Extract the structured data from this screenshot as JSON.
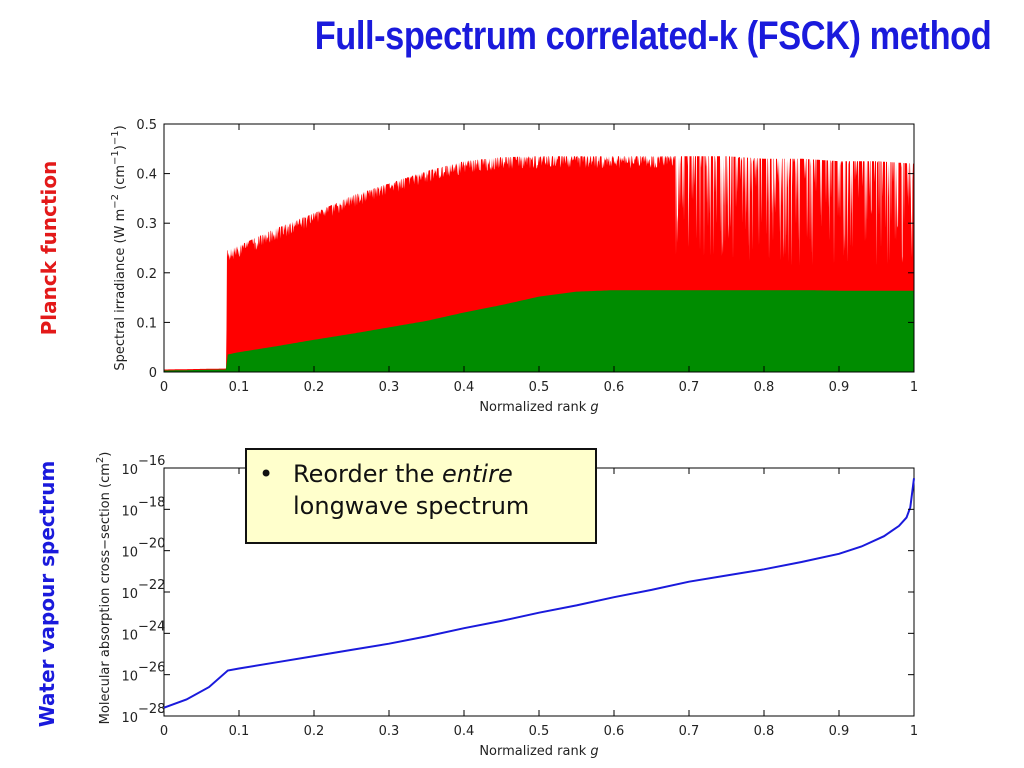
{
  "slide": {
    "title": "Full-spectrum correlated-k (FSCK) method",
    "left_label_top": "Planck function",
    "left_label_bottom": "Water vapour spectrum",
    "callout": {
      "bullet": "•",
      "text_before": "Reorder the ",
      "text_emph": "entire",
      "text_after": "longwave spectrum"
    }
  },
  "chart_data": [
    {
      "type": "area",
      "title": "",
      "xlabel": "Normalized rank",
      "xlabel_var": "g",
      "ylabel": "Spectral irradiance (W m",
      "ylabel_sup1": "−2",
      "ylabel_mid": " (cm",
      "ylabel_sup2": "−1",
      "ylabel_end": ")",
      "ylabel_sup3": "−1",
      "ylabel_close": ")",
      "xlim": [
        0,
        1
      ],
      "ylim": [
        0,
        0.5
      ],
      "xticks": [
        0,
        0.1,
        0.2,
        0.3,
        0.4,
        0.5,
        0.6,
        0.7,
        0.8,
        0.9,
        1
      ],
      "xtick_labels": [
        "0",
        "0.1",
        "0.2",
        "0.3",
        "0.4",
        "0.5",
        "0.6",
        "0.7",
        "0.8",
        "0.9",
        "1"
      ],
      "yticks": [
        0,
        0.1,
        0.2,
        0.3,
        0.4,
        0.5
      ],
      "ytick_labels": [
        "0",
        "0.1",
        "0.2",
        "0.3",
        "0.4",
        "0.5"
      ],
      "series": [
        {
          "color": "#ff0000",
          "x": [
            0,
            0.083,
            0.084,
            0.1,
            0.15,
            0.2,
            0.25,
            0.3,
            0.35,
            0.4,
            0.45,
            0.5,
            0.55,
            0.6,
            0.65,
            0.7,
            0.75,
            0.8,
            0.85,
            0.9,
            0.95,
            1.0
          ],
          "y": [
            0.005,
            0.007,
            0.245,
            0.255,
            0.29,
            0.32,
            0.355,
            0.38,
            0.405,
            0.425,
            0.433,
            0.435,
            0.435,
            0.435,
            0.435,
            0.435,
            0.435,
            0.43,
            0.43,
            0.425,
            0.425,
            0.42
          ]
        },
        {
          "color": "#008c00",
          "x": [
            0,
            0.083,
            0.084,
            0.1,
            0.15,
            0.2,
            0.25,
            0.3,
            0.35,
            0.4,
            0.45,
            0.5,
            0.55,
            0.6,
            0.65,
            0.7,
            0.75,
            0.8,
            0.85,
            0.9,
            0.95,
            1.0
          ],
          "y": [
            0.003,
            0.005,
            0.035,
            0.04,
            0.052,
            0.065,
            0.077,
            0.09,
            0.103,
            0.12,
            0.135,
            0.152,
            0.162,
            0.165,
            0.165,
            0.165,
            0.165,
            0.165,
            0.165,
            0.164,
            0.164,
            0.164
          ]
        }
      ]
    },
    {
      "type": "line",
      "title": "",
      "xlabel": "Normalized rank",
      "xlabel_var": "g",
      "ylabel": "Molecular absorption cross−section (cm",
      "ylabel_sup": "2",
      "ylabel_end": ")",
      "log_y": true,
      "xlim": [
        0,
        1
      ],
      "ylim_exp": [
        -28,
        -16
      ],
      "xticks": [
        0,
        0.1,
        0.2,
        0.3,
        0.4,
        0.5,
        0.6,
        0.7,
        0.8,
        0.9,
        1
      ],
      "xtick_labels": [
        "0",
        "0.1",
        "0.2",
        "0.3",
        "0.4",
        "0.5",
        "0.6",
        "0.7",
        "0.8",
        "0.9",
        "1"
      ],
      "ytick_exps": [
        -28,
        -26,
        -24,
        -22,
        -20,
        -18,
        -16
      ],
      "ytick_base": "10",
      "ytick_exp_labels": [
        "−28",
        "−26",
        "−24",
        "−22",
        "−20",
        "−18",
        "−16"
      ],
      "series": [
        {
          "color": "#1a1adc",
          "x": [
            0,
            0.03,
            0.06,
            0.085,
            0.1,
            0.15,
            0.2,
            0.25,
            0.3,
            0.35,
            0.4,
            0.45,
            0.5,
            0.55,
            0.6,
            0.65,
            0.7,
            0.75,
            0.8,
            0.85,
            0.9,
            0.93,
            0.96,
            0.98,
            0.99,
            0.995,
            1.0
          ],
          "log10_y": [
            -27.6,
            -27.2,
            -26.6,
            -25.8,
            -25.7,
            -25.4,
            -25.1,
            -24.8,
            -24.5,
            -24.15,
            -23.75,
            -23.4,
            -23.0,
            -22.65,
            -22.25,
            -21.9,
            -21.5,
            -21.2,
            -20.9,
            -20.55,
            -20.15,
            -19.8,
            -19.3,
            -18.8,
            -18.4,
            -17.9,
            -16.5
          ]
        }
      ]
    }
  ]
}
